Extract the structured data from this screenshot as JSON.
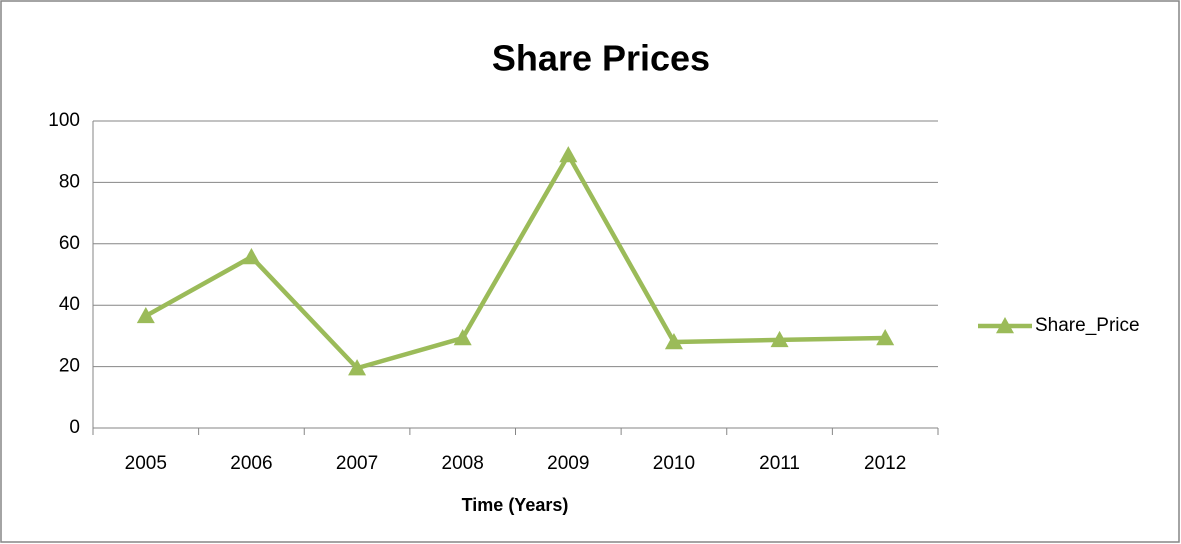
{
  "chart_data": {
    "type": "line",
    "title": "Share Prices",
    "x_label": "Time (Years)",
    "categories": [
      "2005",
      "2006",
      "2007",
      "2008",
      "2009",
      "2010",
      "2011",
      "2012"
    ],
    "series": [
      {
        "name": "Share_Price",
        "color": "#9bbb59",
        "values": [
          36.5,
          55.7,
          19.5,
          29.3,
          88.9,
          28,
          28.7,
          29.3
        ]
      }
    ],
    "ylim": [
      0,
      100
    ],
    "yticks": [
      0,
      20,
      40,
      60,
      80,
      100
    ],
    "grid": true,
    "legend": "right"
  }
}
